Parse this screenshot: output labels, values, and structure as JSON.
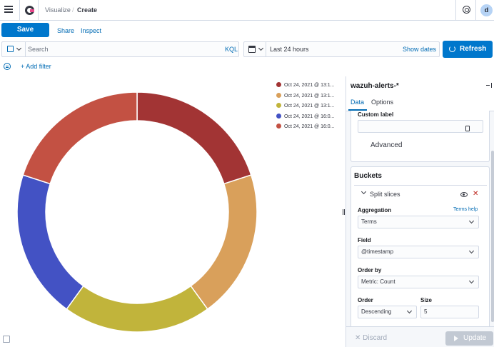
{
  "topnav": {
    "breadcrumbs": [
      "Visualize",
      "Create"
    ],
    "avatar_initial": "d"
  },
  "actions": {
    "save": "Save",
    "share": "Share",
    "inspect": "Inspect"
  },
  "query": {
    "placeholder": "Search",
    "language": "KQL"
  },
  "date": {
    "range": "Last 24 hours",
    "show_dates": "Show dates",
    "refresh": "Refresh"
  },
  "filters": {
    "add_filter": "+ Add filter"
  },
  "chart_data": {
    "type": "pie",
    "donut": true,
    "legend_position": "top-right",
    "categories": [
      "Oct 24, 2021 @ 13:1...",
      "Oct 24, 2021 @ 13:1...",
      "Oct 24, 2021 @ 13:1...",
      "Oct 24, 2021 @ 16:0...",
      "Oct 24, 2021 @ 16:0..."
    ],
    "values": [
      20,
      20,
      20,
      20,
      20
    ],
    "colors": [
      "#a23434",
      "#d9a05b",
      "#c1b43b",
      "#4352c4",
      "#c35143"
    ]
  },
  "panel": {
    "index_pattern": "wazuh-alerts-*",
    "tabs": [
      "Data",
      "Options"
    ],
    "custom_label": "Custom label",
    "advanced": "Advanced",
    "buckets_title": "Buckets",
    "split_slices": "Split slices",
    "aggregation": {
      "label": "Aggregation",
      "help": "Terms help",
      "value": "Terms"
    },
    "field": {
      "label": "Field",
      "value": "@timestamp"
    },
    "order_by": {
      "label": "Order by",
      "value": "Metric: Count"
    },
    "order": {
      "label": "Order",
      "value": "Descending"
    },
    "size": {
      "label": "Size",
      "value": "5"
    },
    "discard": "Discard",
    "update": "Update"
  }
}
